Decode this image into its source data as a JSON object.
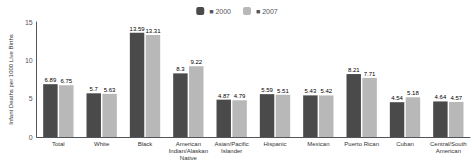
{
  "chart_data": {
    "type": "bar",
    "ylabel": "Infant Deaths per 1000 Live Births",
    "categories": [
      "Total",
      "White",
      "Black",
      "American\nIndian/Alaskan\nNative",
      "Asian/Pacific\nIslander",
      "Hispanic",
      "Mexican",
      "Puerto Rican",
      "Cuban",
      "Central/South\nAmerican"
    ],
    "series": [
      {
        "name": "■ 2000",
        "color": "#4a4a4a",
        "values": [
          6.89,
          5.7,
          13.59,
          8.3,
          4.87,
          5.59,
          5.43,
          8.21,
          4.54,
          4.64
        ]
      },
      {
        "name": "■ 2007",
        "color": "#b8b8b8",
        "values": [
          6.75,
          5.63,
          13.31,
          9.22,
          4.79,
          5.51,
          5.42,
          7.71,
          5.18,
          4.57
        ]
      }
    ],
    "ylim": [
      0,
      15
    ],
    "yticks": [
      0,
      5,
      10,
      15
    ],
    "grid": false,
    "legend": "top",
    "data_labels": true
  }
}
